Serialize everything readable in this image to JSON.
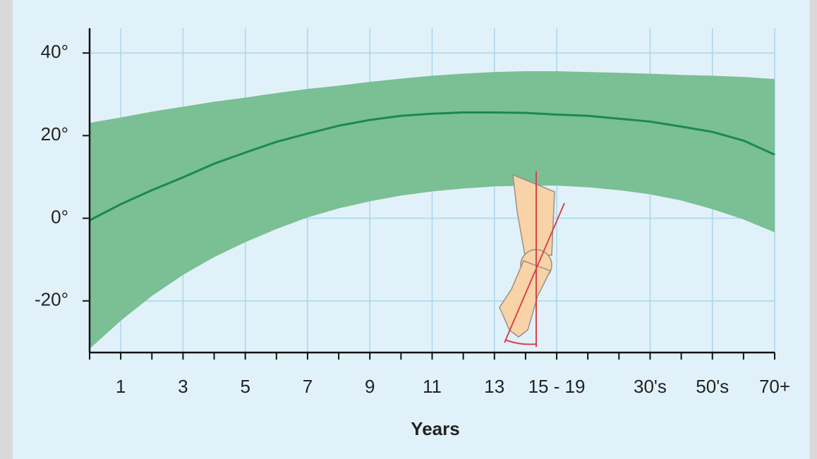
{
  "chart_data": {
    "type": "line",
    "x_label": "Years",
    "categories": [
      null,
      "1",
      null,
      "3",
      null,
      "5",
      null,
      "7",
      null,
      "9",
      null,
      "11",
      null,
      "13",
      null,
      "15 - 19",
      null,
      null,
      "30's",
      null,
      "50's",
      null,
      "70+"
    ],
    "values": [
      -0.5,
      3.4,
      6.8,
      9.9,
      13.2,
      15.9,
      18.5,
      20.5,
      22.4,
      23.8,
      24.8,
      25.3,
      25.6,
      25.6,
      25.5,
      25.1,
      24.8,
      24.1,
      23.4,
      22.2,
      20.9,
      18.8,
      15.4
    ],
    "band_upper": [
      23.1,
      24.4,
      25.8,
      27,
      28.2,
      29.2,
      30.3,
      31.3,
      32.1,
      33,
      33.8,
      34.5,
      35,
      35.4,
      35.6,
      35.6,
      35.4,
      35.2,
      35,
      34.7,
      34.5,
      34.2,
      33.7
    ],
    "band_lower": [
      -31.6,
      -24.8,
      -18.8,
      -13.7,
      -9.4,
      -5.8,
      -2.6,
      0.2,
      2.4,
      4.1,
      5.5,
      6.5,
      7.2,
      7.7,
      7.9,
      7.9,
      7.5,
      6.8,
      5.8,
      4.3,
      2.2,
      -0.3,
      -3.4
    ],
    "color": "#1b8a4c",
    "band_color": "#7bbf94",
    "ylim": [
      -32.5,
      46
    ],
    "yticks": [
      {
        "value": -20,
        "label": "-20°"
      },
      {
        "value": 0,
        "label": "0°"
      },
      {
        "value": 20,
        "label": "20°"
      },
      {
        "value": 40,
        "label": "40°"
      }
    ],
    "grid": true
  }
}
